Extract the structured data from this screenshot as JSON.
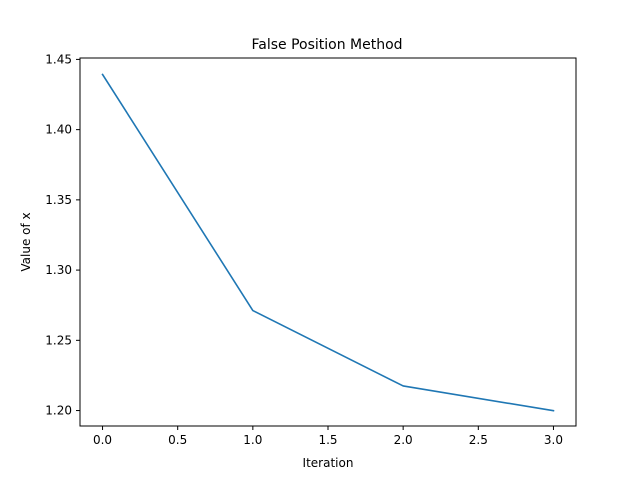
{
  "chart_data": {
    "type": "line",
    "title": "False Position Method",
    "xlabel": "Iteration",
    "ylabel": "Value of x",
    "x": [
      0,
      1,
      2,
      3
    ],
    "series": [
      {
        "values": [
          1.4393,
          1.2712,
          1.2175,
          1.1999
        ],
        "color": "#1f77b4"
      }
    ],
    "xlim": [
      -0.15,
      3.15
    ],
    "ylim": [
      1.189,
      1.451
    ],
    "xticks": [
      0.0,
      0.5,
      1.0,
      1.5,
      2.0,
      2.5,
      3.0
    ],
    "xtick_labels": [
      "0.0",
      "0.5",
      "1.0",
      "1.5",
      "2.0",
      "2.5",
      "3.0"
    ],
    "yticks": [
      1.2,
      1.25,
      1.3,
      1.35,
      1.4,
      1.45
    ],
    "ytick_labels": [
      "1.20",
      "1.25",
      "1.30",
      "1.35",
      "1.40",
      "1.45"
    ],
    "grid": false,
    "legend": "none"
  }
}
